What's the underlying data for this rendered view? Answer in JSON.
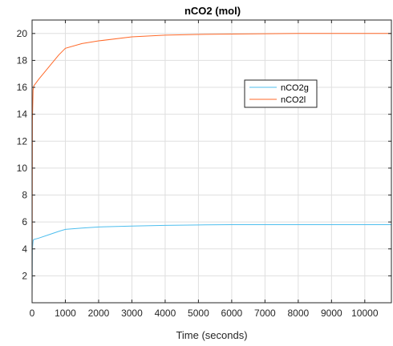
{
  "chart_data": {
    "type": "line",
    "title": "nCO2 (mol)",
    "xlabel": "Time (seconds)",
    "ylabel": "",
    "xlim": [
      0,
      10800
    ],
    "ylim": [
      0,
      21
    ],
    "xticks": [
      0,
      1000,
      2000,
      3000,
      4000,
      5000,
      6000,
      7000,
      8000,
      9000,
      10000
    ],
    "yticks": [
      2,
      4,
      6,
      8,
      10,
      12,
      14,
      16,
      18,
      20
    ],
    "xtick_labels": [
      "0",
      "1000",
      "2000",
      "3000",
      "4000",
      "5000",
      "6000",
      "7000",
      "8000",
      "9000",
      "10000"
    ],
    "ytick_labels": [
      "2",
      "4",
      "6",
      "8",
      "10",
      "12",
      "14",
      "16",
      "18",
      "20"
    ],
    "grid": true,
    "legend_position": "upper-right-inside",
    "series": [
      {
        "name": "nCO2g",
        "color": "#4DBEEE",
        "x": [
          0,
          10,
          30,
          50,
          200,
          500,
          800,
          1000,
          1500,
          2000,
          3000,
          4000,
          5000,
          6000,
          7000,
          8000,
          9000,
          10000,
          10800
        ],
        "y": [
          0.5,
          4.0,
          4.6,
          4.7,
          4.8,
          5.05,
          5.3,
          5.45,
          5.55,
          5.63,
          5.7,
          5.75,
          5.78,
          5.8,
          5.8,
          5.8,
          5.8,
          5.8,
          5.8
        ]
      },
      {
        "name": "nCO2l",
        "color": "#FF6929",
        "x": [
          0,
          10,
          30,
          50,
          200,
          500,
          800,
          1000,
          1500,
          2000,
          3000,
          4000,
          5000,
          6000,
          7000,
          8000,
          9000,
          10000,
          10800
        ],
        "y": [
          0,
          13.5,
          15.8,
          16.1,
          16.6,
          17.5,
          18.4,
          18.9,
          19.25,
          19.45,
          19.75,
          19.88,
          19.93,
          19.96,
          19.98,
          20.0,
          20.0,
          20.0,
          20.0
        ]
      }
    ]
  }
}
